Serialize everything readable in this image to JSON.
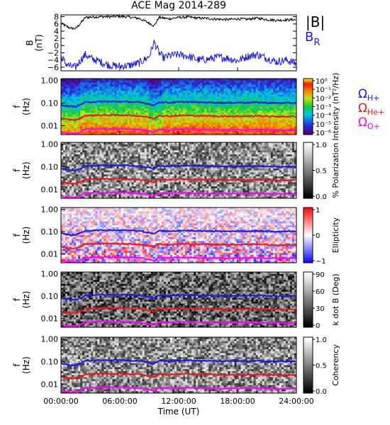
{
  "title": "ACE Mag 2014-289",
  "colors": {
    "bmag": "#000000",
    "br": "#1a1ae6",
    "h": "#1a1ae6",
    "he": "#e61a1a",
    "o": "#ff00ff"
  },
  "chart_data": [
    {
      "type": "line",
      "panel": "magnetic-field",
      "ylabel": [
        "B",
        "(nT)"
      ],
      "ylim": [
        -7,
        8.5
      ],
      "yticks": [
        "8",
        "6",
        "4",
        "2",
        "0",
        "−2",
        "−4",
        "−6"
      ],
      "ytick_values": [
        8,
        6,
        4,
        2,
        0,
        -2,
        -4,
        -6
      ],
      "legend": {
        "bmag": "|B|",
        "br": "B",
        "br_sub": "R"
      },
      "x": [
        0,
        0.5,
        1,
        1.5,
        2,
        2.5,
        3,
        4,
        5,
        6,
        7,
        8,
        9,
        9.5,
        10,
        10.5,
        11,
        12,
        13,
        14,
        15,
        16,
        17,
        18,
        19,
        20,
        21,
        22,
        23,
        24
      ],
      "series": [
        {
          "key": "bmag",
          "values": [
            6.2,
            5.4,
            4.8,
            4.7,
            6.2,
            7.8,
            7.9,
            8,
            8,
            8.1,
            7.9,
            7.5,
            6.2,
            5.5,
            7.8,
            7.6,
            7.4,
            7.8,
            7.9,
            7.6,
            7.5,
            7.3,
            7.2,
            7.4,
            7.3,
            7.6,
            7.2,
            7,
            7.1,
            7.2
          ]
        },
        {
          "key": "br",
          "values": [
            -3,
            -5,
            -5.8,
            -6,
            -4,
            -2.5,
            -3.5,
            -4.5,
            -5.5,
            -5.8,
            -5.5,
            -4.8,
            -3,
            1,
            -2,
            -3.5,
            -2.8,
            -2.5,
            -3,
            -4,
            -3.8,
            -3.2,
            -3.5,
            -4.2,
            -3,
            -2.5,
            -3.5,
            -4.5,
            -4,
            -5
          ]
        }
      ]
    },
    {
      "type": "heatmap",
      "panel": "spectrogram-intensity",
      "ylabel": [
        "f",
        "(Hz)"
      ],
      "yticks": [
        "1.00",
        "0.10",
        "0.01"
      ],
      "colorbar": {
        "label": "Intensity (nT²/Hz)",
        "ticks": [
          "10⁰",
          "10⁻¹",
          "10⁻²",
          "10⁻³",
          "10⁻⁴",
          "10⁻⁵",
          "10⁻⁶"
        ],
        "scale": "rainbow"
      }
    },
    {
      "type": "heatmap",
      "panel": "polarization",
      "ylabel": [
        "f",
        "(Hz)"
      ],
      "yticks": [
        "1.00",
        "0.10",
        "0.01"
      ],
      "colorbar": {
        "label": "% Polarization",
        "ticks": [
          "1.0",
          "0.5",
          "0.0"
        ],
        "scale": "gray"
      }
    },
    {
      "type": "heatmap",
      "panel": "ellipticity",
      "ylabel": [
        "f",
        "(Hz)"
      ],
      "yticks": [
        "1.00",
        "0.10",
        "0.01"
      ],
      "colorbar": {
        "label": "Ellipticity",
        "ticks": [
          "1",
          "0",
          "−1"
        ],
        "scale": "bwr"
      }
    },
    {
      "type": "heatmap",
      "panel": "k-dot-b",
      "ylabel": [
        "f",
        "(Hz)"
      ],
      "yticks": [
        "1.00",
        "0.10",
        "0.01"
      ],
      "colorbar": {
        "label": "k dot B (Deg)",
        "ticks": [
          "90",
          "60",
          "30",
          "0"
        ],
        "scale": "gray"
      }
    },
    {
      "type": "heatmap",
      "panel": "coherency",
      "ylabel": [
        "f",
        "(Hz)"
      ],
      "yticks": [
        "1.00",
        "0.10",
        "0.01"
      ],
      "colorbar": {
        "label": "Coherency",
        "ticks": [
          "1.0",
          "0.5",
          "0.0"
        ],
        "scale": "gray"
      }
    }
  ],
  "gyrofrequencies": {
    "legend": [
      {
        "key": "h",
        "label": "Ω",
        "sub": "H+"
      },
      {
        "key": "he",
        "label": "Ω",
        "sub": "He+"
      },
      {
        "key": "o",
        "label": "Ω",
        "sub": "O+"
      }
    ],
    "x": [
      0,
      0.5,
      1,
      1.5,
      2,
      2.5,
      3,
      4,
      5,
      6,
      7,
      8,
      9,
      9.5,
      10,
      10.5,
      11,
      12,
      13,
      14,
      15,
      16,
      17,
      18,
      19,
      20,
      21,
      22,
      23,
      24
    ],
    "h_hz": [
      0.085,
      0.075,
      0.07,
      0.07,
      0.085,
      0.11,
      0.11,
      0.115,
      0.115,
      0.115,
      0.112,
      0.108,
      0.09,
      0.078,
      0.11,
      0.107,
      0.105,
      0.11,
      0.112,
      0.108,
      0.106,
      0.104,
      0.102,
      0.105,
      0.104,
      0.108,
      0.102,
      0.1,
      0.101,
      0.102
    ],
    "he_hz": [
      0.021,
      0.019,
      0.018,
      0.018,
      0.021,
      0.028,
      0.028,
      0.029,
      0.029,
      0.029,
      0.028,
      0.027,
      0.023,
      0.02,
      0.028,
      0.027,
      0.026,
      0.028,
      0.028,
      0.027,
      0.027,
      0.026,
      0.026,
      0.026,
      0.026,
      0.027,
      0.026,
      0.025,
      0.025,
      0.026
    ],
    "o_hz": [
      0.0053,
      0.0047,
      0.0044,
      0.0044,
      0.0053,
      0.0069,
      0.0069,
      0.0072,
      0.0072,
      0.0072,
      0.007,
      0.0067,
      0.0057,
      0.0049,
      0.0069,
      0.0067,
      0.0066,
      0.0069,
      0.007,
      0.0067,
      0.0066,
      0.0065,
      0.0064,
      0.0066,
      0.0065,
      0.0067,
      0.0064,
      0.0063,
      0.0063,
      0.0064
    ]
  },
  "xaxis": {
    "label": "Time (UT)",
    "ticks": [
      "00:00:00",
      "06:00:00",
      "12:00:00",
      "18:00:00",
      "24:00:00"
    ],
    "tick_hours": [
      0,
      6,
      12,
      18,
      24
    ]
  }
}
